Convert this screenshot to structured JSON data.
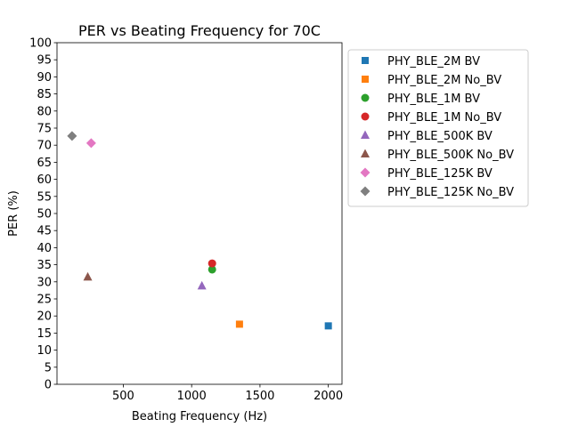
{
  "chart_data": {
    "type": "scatter",
    "title": "PER vs Beating Frequency for 70C",
    "xlabel": "Beating Frequency (Hz)",
    "ylabel": "PER (%)",
    "xlim": [
      15,
      2100
    ],
    "ylim": [
      0,
      100
    ],
    "xticks": [
      500,
      1000,
      1500,
      2000
    ],
    "yticks": [
      0,
      5,
      10,
      15,
      20,
      25,
      30,
      35,
      40,
      45,
      50,
      55,
      60,
      65,
      70,
      75,
      80,
      85,
      90,
      95,
      100
    ],
    "grid": false,
    "legend_position": "outside-right",
    "series": [
      {
        "name": "PHY_BLE_2M BV",
        "marker": "square",
        "color": "#1f77b4",
        "points": [
          {
            "x": 2000,
            "y": 17.1
          }
        ]
      },
      {
        "name": "PHY_BLE_2M No_BV",
        "marker": "square",
        "color": "#ff7f0e",
        "points": [
          {
            "x": 1350,
            "y": 17.6
          }
        ]
      },
      {
        "name": "PHY_BLE_1M BV",
        "marker": "circle",
        "color": "#2ca02c",
        "points": [
          {
            "x": 1150,
            "y": 33.6
          }
        ]
      },
      {
        "name": "PHY_BLE_1M No_BV",
        "marker": "circle",
        "color": "#d62728",
        "points": [
          {
            "x": 1150,
            "y": 35.4
          }
        ]
      },
      {
        "name": "PHY_BLE_500K BV",
        "marker": "triangle",
        "color": "#9467bd",
        "points": [
          {
            "x": 1075,
            "y": 28.8
          }
        ]
      },
      {
        "name": "PHY_BLE_500K No_BV",
        "marker": "triangle",
        "color": "#8c564b",
        "points": [
          {
            "x": 240,
            "y": 31.4
          }
        ]
      },
      {
        "name": "PHY_BLE_125K BV",
        "marker": "diamond",
        "color": "#e377c2",
        "points": [
          {
            "x": 265,
            "y": 70.6
          }
        ]
      },
      {
        "name": "PHY_BLE_125K No_BV",
        "marker": "diamond",
        "color": "#7f7f7f",
        "points": [
          {
            "x": 125,
            "y": 72.7
          }
        ]
      }
    ]
  }
}
